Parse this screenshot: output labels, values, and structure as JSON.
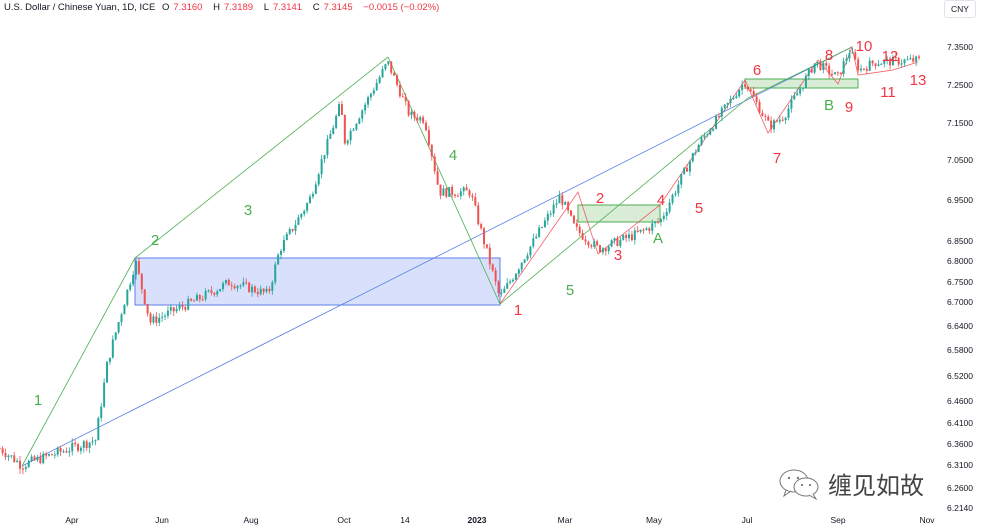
{
  "header": {
    "symbol": "U.S. Dollar / Chinese Yuan, 1D, ICE",
    "open_label": "O",
    "open": "7.3160",
    "high_label": "H",
    "high": "7.3189",
    "low_label": "L",
    "low": "7.3141",
    "close_label": "C",
    "close": "7.3145",
    "change": "−0.0015 (−0.02%)"
  },
  "currency_button": "CNY",
  "watermark": {
    "icon": "wechat-icon",
    "text": "缠见如故"
  },
  "colors": {
    "up": "#26a69a",
    "down": "#ef5350",
    "wave_green": "#4caf50",
    "wave_red": "#f23645",
    "trendline": "#5b7fe8",
    "box_blue": "#d1dafa",
    "box_green": "#cfe9cc"
  },
  "chart_data": {
    "type": "candlestick",
    "title": "U.S. Dollar / Chinese Yuan, 1D, ICE",
    "y_axis_ticks": [
      "7.3500",
      "7.2500",
      "7.1500",
      "7.0500",
      "6.9500",
      "6.8500",
      "6.8000",
      "6.7500",
      "6.7000",
      "6.6400",
      "6.5800",
      "6.5200",
      "6.4600",
      "6.4100",
      "6.3600",
      "6.3100",
      "6.2600",
      "6.2140"
    ],
    "x_axis_ticks": [
      "Apr",
      "Jun",
      "Aug",
      "Oct",
      "14",
      "2023",
      "Mar",
      "May",
      "Jul",
      "Sep",
      "Nov"
    ],
    "price_path": [
      [
        "2022-02-11",
        6.35
      ],
      [
        "2022-02-26",
        6.31
      ],
      [
        "2022-04-17",
        6.37
      ],
      [
        "2022-04-25",
        6.55
      ],
      [
        "2022-05-14",
        6.8
      ],
      [
        "2022-05-24",
        6.65
      ],
      [
        "2022-06-27",
        6.71
      ],
      [
        "2022-07-17",
        6.75
      ],
      [
        "2022-08-12",
        6.72
      ],
      [
        "2022-08-20",
        6.83
      ],
      [
        "2022-09-09",
        6.95
      ],
      [
        "2022-09-30",
        7.2
      ],
      [
        "2022-10-03",
        7.1
      ],
      [
        "2022-11-01",
        7.31
      ],
      [
        "2022-11-16",
        7.17
      ],
      [
        "2022-11-26",
        7.16
      ],
      [
        "2022-12-06",
        6.97
      ],
      [
        "2022-12-27",
        6.97
      ],
      [
        "2023-01-09",
        6.8
      ],
      [
        "2023-01-16",
        6.71
      ],
      [
        "2023-01-26",
        6.77
      ],
      [
        "2023-02-26",
        6.96
      ],
      [
        "2023-03-08",
        6.88
      ],
      [
        "2023-03-24",
        6.83
      ],
      [
        "2023-04-21",
        6.87
      ],
      [
        "2023-05-05",
        6.9
      ],
      [
        "2023-06-01",
        7.1
      ],
      [
        "2023-07-01",
        7.26
      ],
      [
        "2023-07-18",
        7.14
      ],
      [
        "2023-07-28",
        7.17
      ],
      [
        "2023-08-18",
        7.31
      ],
      [
        "2023-09-02",
        7.27
      ],
      [
        "2023-09-10",
        7.34
      ],
      [
        "2023-09-17",
        7.29
      ],
      [
        "2023-09-27",
        7.31
      ],
      [
        "2023-10-28",
        7.315
      ]
    ],
    "wave_labels": [
      {
        "text": "1",
        "color": "green"
      },
      {
        "text": "2",
        "color": "green"
      },
      {
        "text": "3",
        "color": "green"
      },
      {
        "text": "4",
        "color": "green"
      },
      {
        "text": "1",
        "color": "red"
      },
      {
        "text": "5",
        "color": "green"
      },
      {
        "text": "2",
        "color": "red"
      },
      {
        "text": "3",
        "color": "red"
      },
      {
        "text": "4",
        "color": "red"
      },
      {
        "text": "A",
        "color": "green"
      },
      {
        "text": "5",
        "color": "red"
      },
      {
        "text": "6",
        "color": "red"
      },
      {
        "text": "7",
        "color": "red"
      },
      {
        "text": "8",
        "color": "red"
      },
      {
        "text": "B",
        "color": "green"
      },
      {
        "text": "9",
        "color": "red"
      },
      {
        "text": "10",
        "color": "red"
      },
      {
        "text": "11",
        "color": "red"
      },
      {
        "text": "12",
        "color": "red"
      },
      {
        "text": "13",
        "color": "red"
      }
    ]
  }
}
